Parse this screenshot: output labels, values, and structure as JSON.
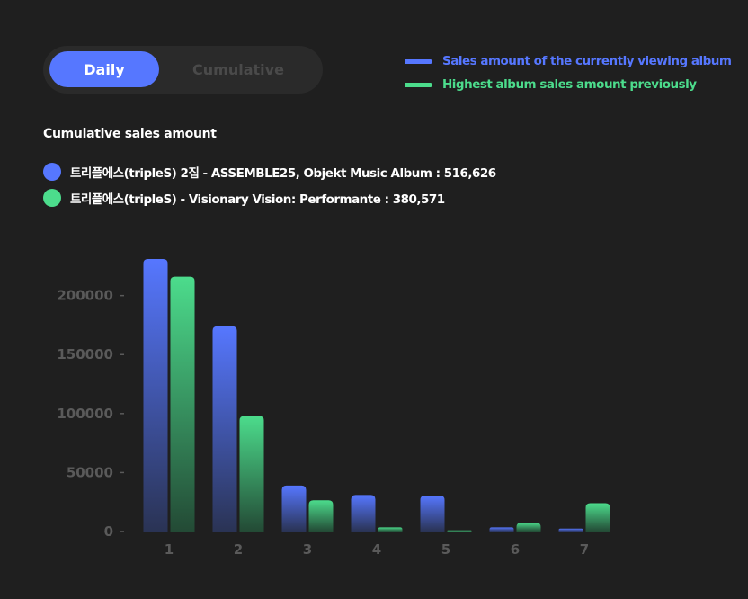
{
  "toggle": {
    "daily_label": "Daily",
    "cumulative_label": "Cumulative",
    "selected": "Daily"
  },
  "legend": {
    "current_label": "Sales amount of the currently viewing album",
    "previous_label": "Highest album sales amount previously"
  },
  "colors": {
    "current": "#5677ff",
    "previous": "#4cdc8c",
    "background": "#1f1f1f",
    "axis_text": "#5a5a5a"
  },
  "summary": {
    "title": "Cumulative sales amount",
    "items": [
      {
        "text": "트리플에스(tripleS) 2집 - ASSEMBLE25, Objekt Music Album : 516,626"
      },
      {
        "text": "트리플에스(tripleS) - Visionary Vision: Performante : 380,571"
      }
    ]
  },
  "chart_data": {
    "type": "bar",
    "categories": [
      "1",
      "2",
      "3",
      "4",
      "5",
      "6",
      "7"
    ],
    "series": [
      {
        "name": "Sales amount of the currently viewing album",
        "values": [
          231000,
          174000,
          39000,
          31000,
          30500,
          3500,
          2500
        ]
      },
      {
        "name": "Highest album sales amount previously",
        "values": [
          216000,
          98000,
          26500,
          3500,
          1000,
          7500,
          24000
        ]
      }
    ],
    "ylim": [
      0,
      231000
    ],
    "yticks": [
      "0",
      "50000",
      "100000",
      "150000",
      "200000"
    ],
    "ytick_values": [
      0,
      50000,
      100000,
      150000,
      200000
    ],
    "grid": false,
    "legend": "top-right"
  }
}
